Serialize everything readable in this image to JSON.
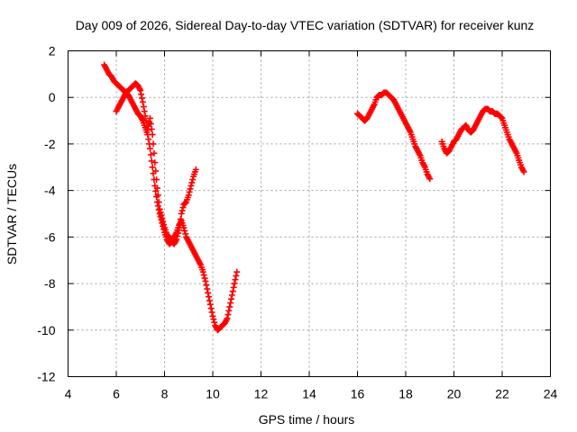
{
  "chart_data": {
    "type": "scatter",
    "title": "Day 009 of 2026, Sidereal Day-to-day VTEC variation (SDTVAR) for receiver kunz",
    "xlabel": "GPS time / hours",
    "ylabel": "SDTVAR / TECUs",
    "xlim": [
      4,
      24
    ],
    "ylim": [
      -12,
      2
    ],
    "xticks": [
      4,
      6,
      8,
      10,
      12,
      14,
      16,
      18,
      20,
      22,
      24
    ],
    "yticks": [
      -12,
      -10,
      -8,
      -6,
      -4,
      -2,
      0,
      2
    ],
    "xtick_labels": [
      "4",
      "6",
      "8",
      "10",
      "12",
      "14",
      "16",
      "18",
      "20",
      "22",
      "24"
    ],
    "ytick_labels": [
      "-12",
      "-10",
      "-8",
      "-6",
      "-4",
      "-2",
      "0",
      "2"
    ],
    "grid": true,
    "marker": "+",
    "series_color": "#ff0000",
    "series": [
      {
        "name": "segment-1",
        "x": [
          5.5,
          5.6,
          5.7,
          5.8,
          5.9,
          6.0,
          6.1,
          6.2,
          6.3,
          6.4,
          6.5,
          6.6,
          6.7,
          6.8,
          6.9,
          7.0,
          7.1,
          7.2,
          7.3,
          7.4,
          7.5,
          7.6,
          7.7,
          7.8,
          7.9,
          8.0,
          8.1,
          8.2,
          8.3,
          8.4,
          8.5,
          8.6,
          8.7,
          8.8,
          8.9,
          9.0,
          9.1,
          9.2,
          9.3,
          9.4,
          9.5,
          9.6,
          9.7,
          9.8,
          9.9,
          10.0,
          10.1,
          10.2,
          10.3,
          10.4,
          10.5,
          10.6,
          10.7,
          10.8,
          10.9,
          11.0
        ],
        "y": [
          1.4,
          1.2,
          1.0,
          0.9,
          0.7,
          0.6,
          0.5,
          0.4,
          0.3,
          0.2,
          0.1,
          -0.1,
          -0.3,
          -0.5,
          -0.7,
          -0.8,
          -1.0,
          -1.3,
          -1.6,
          -2.2,
          -3.0,
          -3.8,
          -4.5,
          -5.0,
          -5.4,
          -5.8,
          -6.1,
          -6.3,
          -6.2,
          -6.0,
          -5.8,
          -5.5,
          -5.3,
          -5.6,
          -6.0,
          -6.2,
          -6.4,
          -6.6,
          -6.8,
          -7.0,
          -7.2,
          -7.5,
          -7.9,
          -8.4,
          -8.9,
          -9.4,
          -9.8,
          -10.0,
          -9.9,
          -9.8,
          -9.7,
          -9.5,
          -9.0,
          -8.5,
          -8.0,
          -7.5
        ]
      },
      {
        "name": "segment-2",
        "x": [
          6.0,
          6.1,
          6.2,
          6.3,
          6.4,
          6.5,
          6.6,
          6.7,
          6.8,
          6.9,
          7.0,
          7.1,
          7.2,
          7.3,
          7.4,
          7.5,
          7.6,
          7.7,
          7.8,
          7.9,
          8.0,
          8.1,
          8.2,
          8.3,
          8.4,
          8.5,
          8.6,
          8.7,
          8.8,
          8.9,
          9.0,
          9.1,
          9.2,
          9.3
        ],
        "y": [
          -0.6,
          -0.4,
          -0.2,
          0.0,
          0.2,
          0.3,
          0.4,
          0.5,
          0.6,
          0.5,
          0.3,
          -0.2,
          -0.8,
          -1.4,
          -0.9,
          -1.6,
          -2.8,
          -3.9,
          -4.8,
          -5.2,
          -5.6,
          -5.9,
          -6.0,
          -6.2,
          -6.3,
          -6.1,
          -5.7,
          -5.0,
          -4.6,
          -4.5,
          -4.2,
          -3.8,
          -3.4,
          -3.1
        ]
      },
      {
        "name": "segment-3",
        "x": [
          16.0,
          16.1,
          16.2,
          16.3,
          16.4,
          16.5,
          16.6,
          16.7,
          16.8,
          16.9,
          17.0,
          17.1,
          17.2,
          17.3,
          17.4,
          17.5,
          17.6,
          17.7,
          17.8,
          17.9,
          18.0,
          18.1,
          18.2,
          18.3,
          18.4,
          18.5,
          18.6,
          18.7,
          18.8,
          18.9,
          19.0
        ],
        "y": [
          -0.7,
          -0.8,
          -0.9,
          -1.0,
          -0.9,
          -0.7,
          -0.5,
          -0.3,
          0.0,
          0.1,
          0.1,
          0.2,
          0.2,
          0.1,
          0.0,
          -0.1,
          -0.3,
          -0.5,
          -0.7,
          -0.9,
          -1.1,
          -1.3,
          -1.5,
          -1.8,
          -2.1,
          -2.3,
          -2.5,
          -2.8,
          -3.0,
          -3.3,
          -3.5
        ]
      },
      {
        "name": "segment-4",
        "x": [
          19.5,
          19.6,
          19.7,
          19.8,
          19.9,
          20.0,
          20.1,
          20.2,
          20.3,
          20.4,
          20.5,
          20.6,
          20.7,
          20.8,
          20.9,
          21.0,
          21.1,
          21.2,
          21.3,
          21.4,
          21.5,
          21.6,
          21.7,
          21.8,
          21.9,
          22.0,
          22.1,
          22.2,
          22.3,
          22.4,
          22.5,
          22.6,
          22.7,
          22.8,
          22.9
        ],
        "y": [
          -1.9,
          -2.2,
          -2.4,
          -2.3,
          -2.1,
          -1.9,
          -1.8,
          -1.6,
          -1.4,
          -1.3,
          -1.2,
          -1.4,
          -1.5,
          -1.4,
          -1.2,
          -1.0,
          -0.8,
          -0.6,
          -0.5,
          -0.5,
          -0.6,
          -0.6,
          -0.7,
          -0.7,
          -0.8,
          -0.9,
          -1.2,
          -1.5,
          -1.8,
          -2.0,
          -2.2,
          -2.4,
          -2.7,
          -3.0,
          -3.2
        ]
      }
    ]
  }
}
